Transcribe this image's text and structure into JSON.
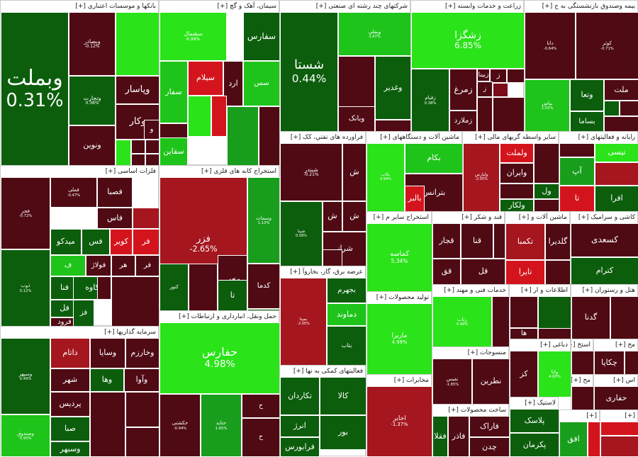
{
  "palette": {
    "r3": "#4f0a14",
    "r2": "#7a0b18",
    "r1": "#a5161f",
    "r0": "#d4141c",
    "g0": "#2ae319",
    "g1": "#1ec41a",
    "g2": "#189e1c",
    "g3": "#0c5e0c",
    "n": "#5a0a10"
  },
  "sectors": [
    {
      "id": "banks",
      "title": "بانکها و موسسات اعتباری [+]",
      "tiles": [
        {
          "name": "وبملت",
          "pct": "0.31%",
          "c": "g3"
        },
        {
          "name": "وبصادر",
          "pct": "-0.12%",
          "c": "r3"
        },
        {
          "name": "وتجارت",
          "pct": "0.38%",
          "c": "g3"
        },
        {
          "name": "وپاسار",
          "pct": "",
          "c": "r3"
        },
        {
          "name": "وکار",
          "pct": "",
          "c": "r3"
        },
        {
          "name": "ونوین",
          "pct": "",
          "c": "r3"
        },
        {
          "name": "",
          "pct": "",
          "c": "g0"
        },
        {
          "name": "",
          "pct": "",
          "c": "g0"
        },
        {
          "name": "و",
          "pct": "",
          "c": "r3"
        },
        {
          "name": "",
          "pct": "",
          "c": "r3"
        },
        {
          "name": "",
          "pct": "",
          "c": "r3"
        },
        {
          "name": "",
          "pct": "",
          "c": "r3"
        },
        {
          "name": "",
          "pct": "",
          "c": "r3"
        }
      ]
    },
    {
      "id": "cement",
      "title": "سیمان، آهک و گچ [+]",
      "tiles": [
        {
          "name": "سشمال",
          "pct": "6.99%",
          "c": "g0"
        },
        {
          "name": "سفارس",
          "pct": "",
          "c": "g3"
        },
        {
          "name": "سس",
          "pct": "",
          "c": "g1"
        },
        {
          "name": "سیلام",
          "pct": "",
          "c": "r0"
        },
        {
          "name": "ارد",
          "pct": "",
          "c": "r3"
        },
        {
          "name": "سفار",
          "pct": "",
          "c": "g1"
        },
        {
          "name": "سبزوا",
          "pct": "",
          "c": "r3"
        },
        {
          "name": "سقاین",
          "pct": "",
          "c": "g1"
        },
        {
          "name": "",
          "pct": "",
          "c": "g0"
        },
        {
          "name": "",
          "pct": "",
          "c": "r0"
        },
        {
          "name": "",
          "pct": "",
          "c": "g2"
        },
        {
          "name": "",
          "pct": "",
          "c": "r3"
        }
      ]
    },
    {
      "id": "multi",
      "title": "شرکتهای چند رشته ای صنعتی [+]",
      "tiles": [
        {
          "name": "شستا",
          "pct": "0.44%",
          "c": "g3"
        },
        {
          "name": "وبملی",
          "pct": "3.47%",
          "c": "g1"
        },
        {
          "name": "",
          "pct": "",
          "c": "r3"
        },
        {
          "name": "وغدیر",
          "pct": "",
          "c": "g3"
        },
        {
          "name": "وبانک",
          "pct": "",
          "c": "r3"
        },
        {
          "name": "",
          "pct": "",
          "c": "r3"
        },
        {
          "name": "",
          "pct": "",
          "c": "r1"
        },
        {
          "name": "",
          "pct": "",
          "c": "g2"
        }
      ]
    },
    {
      "id": "agri",
      "title": "زراعت و خدمات وابسته [+]",
      "tiles": [
        {
          "name": "زشگزا",
          "pct": "6.85%",
          "c": "g0"
        },
        {
          "name": "زقیام",
          "pct": "0.38%",
          "c": "g3"
        },
        {
          "name": "زمرغ",
          "pct": "",
          "c": "r3"
        },
        {
          "name": "زبینا",
          "pct": "",
          "c": "r3"
        },
        {
          "name": "زملارد",
          "pct": "",
          "c": "r3"
        },
        {
          "name": "ز",
          "pct": "",
          "c": "r3"
        },
        {
          "name": "",
          "pct": "",
          "c": "r3"
        },
        {
          "name": "ز",
          "pct": "",
          "c": "r3"
        },
        {
          "name": "",
          "pct": "",
          "c": "r2"
        },
        {
          "name": "",
          "pct": "",
          "c": "r3"
        },
        {
          "name": "",
          "pct": "",
          "c": "r3"
        }
      ]
    },
    {
      "id": "insurance",
      "title": "بیمه وصندوق بازنشستگی به ج [+]",
      "tiles": [
        {
          "name": "دانا",
          "pct": "-0.64%",
          "c": "r3"
        },
        {
          "name": "کوثر",
          "pct": "-0.71%",
          "c": "r3"
        },
        {
          "name": "بپاس",
          "pct": "1.55%",
          "c": "g1"
        },
        {
          "name": "وتعا",
          "pct": "",
          "c": "g3"
        },
        {
          "name": "بساما",
          "pct": "",
          "c": "g3"
        },
        {
          "name": "ملت",
          "pct": "",
          "c": "r3"
        },
        {
          "name": "",
          "pct": "",
          "c": "g3"
        },
        {
          "name": "",
          "pct": "",
          "c": "r3"
        },
        {
          "name": "",
          "pct": "",
          "c": "r3"
        }
      ]
    },
    {
      "id": "metals",
      "title": "فلزات اساسی [+]",
      "tiles": [
        {
          "name": "فجر",
          "pct": "-0.72%",
          "c": "r3"
        },
        {
          "name": "ذوب",
          "pct": "0.12%",
          "c": "g3"
        },
        {
          "name": "فملی",
          "pct": "-0.47%",
          "c": "r3"
        },
        {
          "name": "فصبا",
          "pct": "",
          "c": "r3"
        },
        {
          "name": "فاس",
          "pct": "",
          "c": "r3"
        },
        {
          "name": "فس",
          "pct": "",
          "c": "g3"
        },
        {
          "name": "کویر",
          "pct": "",
          "c": "r0"
        },
        {
          "name": "فر",
          "pct": "",
          "c": "r0"
        },
        {
          "name": "میدکو",
          "pct": "",
          "c": "g3"
        },
        {
          "name": "ف",
          "pct": "",
          "c": "g1"
        },
        {
          "name": "فولاژ",
          "pct": "",
          "c": "r3"
        },
        {
          "name": "هر",
          "pct": "",
          "c": "r3"
        },
        {
          "name": "فر",
          "pct": "",
          "c": "r3"
        },
        {
          "name": "فنا",
          "pct": "",
          "c": "g3"
        },
        {
          "name": "کاوه",
          "pct": "",
          "c": "g3"
        },
        {
          "name": "فل",
          "pct": "",
          "c": "g3"
        },
        {
          "name": "فرود",
          "pct": "",
          "c": "r3"
        },
        {
          "name": "فز",
          "pct": "",
          "c": "g3"
        },
        {
          "name": "",
          "pct": "",
          "c": "r3"
        },
        {
          "name": "",
          "pct": "",
          "c": "r1"
        },
        {
          "name": "",
          "pct": "",
          "c": "r3"
        }
      ]
    },
    {
      "id": "mining",
      "title": "استخراج کانه های فلزی [+]",
      "tiles": [
        {
          "name": "فزر",
          "pct": "-2.65%",
          "c": "r1"
        },
        {
          "name": "وسمات",
          "pct": "1.13%",
          "c": "g2"
        },
        {
          "name": "کچاد",
          "pct": "",
          "c": "g3"
        },
        {
          "name": "کدما",
          "pct": "",
          "c": "r3"
        },
        {
          "name": "کگل",
          "pct": "",
          "c": "r3"
        },
        {
          "name": "تا",
          "pct": "",
          "c": "g3"
        },
        {
          "name": "کنور",
          "pct": "",
          "c": "g3"
        },
        {
          "name": "",
          "pct": "",
          "c": "r3"
        },
        {
          "name": "",
          "pct": "",
          "c": "g3"
        }
      ]
    },
    {
      "id": "transport",
      "title": "حمل ونقل، انبارداری و ارتباطات [+]",
      "tiles": [
        {
          "name": "حفارس",
          "pct": "4.98%",
          "c": "g0"
        },
        {
          "name": "حکشتی",
          "pct": "-0.94%",
          "c": "r3"
        },
        {
          "name": "حتاید",
          "pct": "1.65%",
          "c": "g2"
        },
        {
          "name": "ح",
          "pct": "",
          "c": "r3"
        },
        {
          "name": "ح",
          "pct": "",
          "c": "r3"
        },
        {
          "name": "",
          "pct": "",
          "c": "r3"
        }
      ]
    },
    {
      "id": "invest",
      "title": "سرمایه گذاریها [+]",
      "tiles": [
        {
          "name": "وسپهر",
          "pct": "0.49%",
          "c": "g3"
        },
        {
          "name": "وصندوق",
          "pct": "0.93%",
          "c": "g1"
        },
        {
          "name": "داتام",
          "pct": "",
          "c": "r1"
        },
        {
          "name": "وسایا",
          "pct": "",
          "c": "r3"
        },
        {
          "name": "وخارزم",
          "pct": "",
          "c": "r3"
        },
        {
          "name": "شهر",
          "pct": "",
          "c": "r3"
        },
        {
          "name": "وها",
          "pct": "",
          "c": "g3"
        },
        {
          "name": "وآوا",
          "pct": "",
          "c": "r3"
        },
        {
          "name": "پردیس",
          "pct": "",
          "c": "r3"
        },
        {
          "name": "صبا",
          "pct": "",
          "c": "g3"
        },
        {
          "name": "وسبهر",
          "pct": "",
          "c": "g3"
        },
        {
          "name": "",
          "pct": "",
          "c": "r3"
        },
        {
          "name": "",
          "pct": "",
          "c": "r3"
        },
        {
          "name": "",
          "pct": "",
          "c": "r3"
        }
      ]
    },
    {
      "id": "refinery",
      "title": "فراورده هاي نفتي، کک [+]",
      "tiles": [
        {
          "name": "شبندر",
          "pct": "-0.21%",
          "c": "r3"
        },
        {
          "name": "شپنا",
          "pct": "0.58%",
          "c": "g3"
        },
        {
          "name": "ش",
          "pct": "",
          "c": "r3"
        },
        {
          "name": "ش",
          "pct": "",
          "c": "r3"
        },
        {
          "name": "شراز",
          "pct": "",
          "c": "r3"
        },
        {
          "name": "ش",
          "pct": "",
          "c": "r3"
        },
        {
          "name": "",
          "pct": "",
          "c": "r3"
        }
      ]
    },
    {
      "id": "machinery",
      "title": "ماشین آلات و دستگاههای [+]",
      "tiles": [
        {
          "name": "بکاب",
          "pct": "4.94%",
          "c": "g0"
        },
        {
          "name": "بکام",
          "pct": "",
          "c": "g1"
        },
        {
          "name": "بترانس",
          "pct": "",
          "c": "r3"
        },
        {
          "name": "بالبر",
          "pct": "",
          "c": "r0"
        },
        {
          "name": "",
          "pct": "",
          "c": "r3"
        }
      ]
    },
    {
      "id": "finance",
      "title": "سایر واسطه گریهای مالی [+]",
      "tiles": [
        {
          "name": "ولپارس",
          "pct": "-2.05%",
          "c": "r1"
        },
        {
          "name": "ولملت",
          "pct": "",
          "c": "r0"
        },
        {
          "name": "وایران",
          "pct": "",
          "c": "r3"
        },
        {
          "name": "ول",
          "pct": "",
          "c": "g3"
        },
        {
          "name": "ولکار",
          "pct": "",
          "c": "g3"
        },
        {
          "name": "",
          "pct": "",
          "c": "r3"
        },
        {
          "name": "",
          "pct": "",
          "c": "r3"
        },
        {
          "name": "",
          "pct": "",
          "c": "r3"
        }
      ]
    },
    {
      "id": "computer",
      "title": "رایانه و فعالیتهای [+]",
      "tiles": [
        {
          "name": "تیسی",
          "pct": "",
          "c": "g0"
        },
        {
          "name": "آپ",
          "pct": "",
          "c": "g2"
        },
        {
          "name": "افرا",
          "pct": "",
          "c": "g3"
        },
        {
          "name": "تا",
          "pct": "",
          "c": "r0"
        },
        {
          "name": "",
          "pct": "",
          "c": "r1"
        },
        {
          "name": "",
          "pct": "",
          "c": "r3"
        },
        {
          "name": "",
          "pct": "",
          "c": "r3"
        }
      ]
    },
    {
      "id": "other_mining",
      "title": "استخراج سایر م [+]",
      "tiles": [
        {
          "name": "کماسه",
          "pct": "5.34%",
          "c": "g0"
        }
      ]
    },
    {
      "id": "sugar",
      "title": "قند و شکر [+]",
      "tiles": [
        {
          "name": "قجار",
          "pct": "",
          "c": "r3"
        },
        {
          "name": "قنا",
          "pct": "",
          "c": "r3"
        },
        {
          "name": "قل",
          "pct": "",
          "c": "r3"
        },
        {
          "name": "قق",
          "pct": "",
          "c": "r3"
        },
        {
          "name": "",
          "pct": "",
          "c": "r3"
        }
      ]
    },
    {
      "id": "machinery2",
      "title": "ماشین آلات و [+]",
      "tiles": [
        {
          "name": "تکمبا",
          "pct": "",
          "c": "r1"
        },
        {
          "name": "گلدیرا",
          "pct": "",
          "c": "r3"
        },
        {
          "name": "تایرا",
          "pct": "",
          "c": "r0"
        },
        {
          "name": "",
          "pct": "",
          "c": "r3"
        }
      ]
    },
    {
      "id": "ceramic",
      "title": "کاشی و سرامیک [+]",
      "tiles": [
        {
          "name": "کسعدی",
          "pct": "",
          "c": "r3"
        },
        {
          "name": "کترام",
          "pct": "",
          "c": "g3"
        }
      ]
    },
    {
      "id": "utility",
      "title": "عرضه برق، گاز، بخاروآ [+]",
      "tiles": [
        {
          "name": "بمپنا",
          "pct": "-2.05%",
          "c": "r1"
        },
        {
          "name": "بجهرم",
          "pct": "",
          "c": "g3"
        },
        {
          "name": "دماوند",
          "pct": "",
          "c": "g1"
        },
        {
          "name": "بتاب",
          "pct": "",
          "c": "g3"
        },
        {
          "name": "",
          "pct": "",
          "c": "r3"
        }
      ]
    },
    {
      "id": "products",
      "title": "تولید محصولات [+]",
      "tiles": [
        {
          "name": "ماریرا",
          "pct": "4.99%",
          "c": "g0"
        }
      ]
    },
    {
      "id": "tech_services",
      "title": "خدمات فنی و مهند [+]",
      "tiles": [
        {
          "name": "رتاب",
          "pct": "4.99%",
          "c": "g0"
        },
        {
          "name": "",
          "pct": "",
          "c": "r3"
        }
      ]
    },
    {
      "id": "info",
      "title": "اطلاعات و ار [+]",
      "tiles": [
        {
          "name": "",
          "pct": "",
          "c": "r3"
        },
        {
          "name": "",
          "pct": "",
          "c": "g3"
        },
        {
          "name": "ها",
          "pct": "",
          "c": "r3"
        },
        {
          "name": "",
          "pct": "",
          "c": "r3"
        }
      ]
    },
    {
      "id": "hotel",
      "title": "هتل و رستوران [+]",
      "tiles": [
        {
          "name": "گدنا",
          "pct": "",
          "c": "r3"
        },
        {
          "name": "",
          "pct": "",
          "c": "r3"
        }
      ]
    },
    {
      "id": "textile",
      "title": "منسوجات [+]",
      "tiles": [
        {
          "name": "نفیس",
          "pct": "-1.85%",
          "c": "r3"
        },
        {
          "name": "نطرین",
          "pct": "",
          "c": "r3"
        }
      ]
    },
    {
      "id": "support",
      "title": "فعالیتهای کمکی به نها [+]",
      "tiles": [
        {
          "name": "تکاردان",
          "pct": "",
          "c": "g3"
        },
        {
          "name": "کالا",
          "pct": "",
          "c": "g3"
        },
        {
          "name": "انرژ",
          "pct": "",
          "c": "g3"
        },
        {
          "name": "بور",
          "pct": "",
          "c": "g3"
        },
        {
          "name": "فرابورس",
          "pct": "",
          "c": "g3"
        }
      ]
    },
    {
      "id": "telecom",
      "title": "مخابرات [+]",
      "tiles": [
        {
          "name": "اخابر",
          "pct": "-1.37%",
          "c": "r1"
        }
      ]
    },
    {
      "id": "manufacturing",
      "title": "ساخت محصولات [+]",
      "tiles": [
        {
          "name": "فقلا",
          "pct": "",
          "c": "g3"
        },
        {
          "name": "فاذر",
          "pct": "",
          "c": "r3"
        },
        {
          "name": "فاراک",
          "pct": "",
          "c": "r3"
        },
        {
          "name": "چدن",
          "pct": "",
          "c": "r3"
        }
      ]
    },
    {
      "id": "dairy",
      "title": "دباغی [+]",
      "tiles": [
        {
          "name": "وانا",
          "pct": "4.60%",
          "c": "g0"
        },
        {
          "name": "کز",
          "pct": "",
          "c": "r3"
        }
      ]
    },
    {
      "id": "plastic",
      "title": "لاستیک [+]",
      "tiles": [
        {
          "name": "پلاسک",
          "pct": "",
          "c": "g3"
        },
        {
          "name": "پکرمان",
          "pct": "",
          "c": "g3"
        },
        {
          "name": "",
          "pct": "",
          "c": "r3"
        }
      ]
    },
    {
      "id": "pharma",
      "title": "استخ [+]",
      "tiles": [
        {
          "name": "",
          "pct": "",
          "c": "r3"
        },
        {
          "name": "",
          "pct": "",
          "c": "r3"
        }
      ]
    },
    {
      "id": "chem",
      "title": "مح [+]",
      "tiles": [
        {
          "name": "چکاپا",
          "pct": "",
          "c": "r3"
        },
        {
          "name": "",
          "pct": "",
          "c": "r3"
        }
      ]
    },
    {
      "id": "other1",
      "title": "مح [+]",
      "tiles": [
        {
          "name": "",
          "pct": "",
          "c": "r3"
        }
      ]
    },
    {
      "id": "other2",
      "title": "اس [+]",
      "tiles": [
        {
          "name": "حفاری",
          "pct": "",
          "c": "r3"
        }
      ]
    },
    {
      "id": "other3",
      "title": "[+]",
      "tiles": [
        {
          "name": "افق",
          "pct": "",
          "c": "g2"
        },
        {
          "name": "",
          "pct": "",
          "c": "r0"
        }
      ]
    },
    {
      "id": "other4",
      "title": "[+]",
      "tiles": [
        {
          "name": "",
          "pct": "",
          "c": "r0"
        },
        {
          "name": "",
          "pct": "",
          "c": "r1"
        }
      ]
    }
  ]
}
